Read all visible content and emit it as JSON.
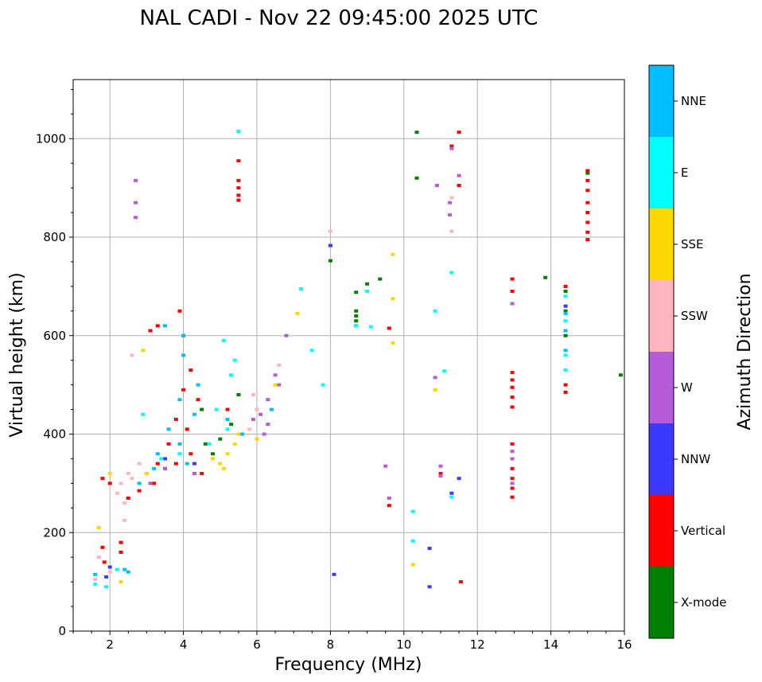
{
  "chart_data": {
    "type": "scatter",
    "title": "NAL CADI - Nov 22 09:45:00 2025 UTC",
    "xlabel": "Frequency (MHz)",
    "ylabel": "Virtual height (km)",
    "xlim": [
      1,
      16
    ],
    "ylim": [
      0,
      1120
    ],
    "xticks": [
      2,
      4,
      6,
      8,
      10,
      12,
      14,
      16
    ],
    "yticks": [
      0,
      200,
      400,
      600,
      800,
      1000
    ],
    "grid": true,
    "colorbar": {
      "label": "Azimuth Direction",
      "categories": [
        {
          "name": "X-mode",
          "color": "#008000"
        },
        {
          "name": "Vertical",
          "color": "#ff0000"
        },
        {
          "name": "NNW",
          "color": "#3a3aff"
        },
        {
          "name": "W",
          "color": "#b65bd9"
        },
        {
          "name": "SSW",
          "color": "#ffb6c1"
        },
        {
          "name": "SSE",
          "color": "#ffd700"
        },
        {
          "name": "E",
          "color": "#00ffff"
        },
        {
          "name": "NNE",
          "color": "#00bfff"
        }
      ]
    },
    "series": [
      {
        "name": "X-mode",
        "points": [
          [
            10.35,
            1013
          ],
          [
            10.35,
            920
          ],
          [
            8.7,
            688
          ],
          [
            8.7,
            650
          ],
          [
            8.7,
            640
          ],
          [
            8.7,
            630
          ],
          [
            8.7,
            620
          ],
          [
            9.0,
            705
          ],
          [
            9.35,
            715
          ],
          [
            8.0,
            752
          ],
          [
            13.85,
            718
          ],
          [
            14.4,
            690
          ],
          [
            14.4,
            650
          ],
          [
            14.4,
            600
          ],
          [
            15.9,
            520
          ],
          [
            15.0,
            930
          ],
          [
            4.5,
            450
          ],
          [
            4.6,
            380
          ],
          [
            5.0,
            390
          ],
          [
            5.3,
            420
          ],
          [
            5.6,
            400
          ],
          [
            3.5,
            330
          ],
          [
            4.8,
            360
          ],
          [
            5.5,
            480
          ]
        ]
      },
      {
        "name": "Vertical",
        "points": [
          [
            11.5,
            1013
          ],
          [
            11.3,
            985
          ],
          [
            15.0,
            935
          ],
          [
            15.0,
            915
          ],
          [
            15.0,
            895
          ],
          [
            15.0,
            870
          ],
          [
            15.0,
            850
          ],
          [
            15.0,
            830
          ],
          [
            15.0,
            810
          ],
          [
            15.0,
            795
          ],
          [
            11.5,
            905
          ],
          [
            5.5,
            955
          ],
          [
            5.5,
            915
          ],
          [
            5.5,
            900
          ],
          [
            5.5,
            885
          ],
          [
            5.5,
            875
          ],
          [
            12.95,
            715
          ],
          [
            12.95,
            690
          ],
          [
            12.95,
            525
          ],
          [
            12.95,
            510
          ],
          [
            12.95,
            495
          ],
          [
            12.95,
            475
          ],
          [
            12.95,
            455
          ],
          [
            12.95,
            380
          ],
          [
            12.95,
            330
          ],
          [
            12.95,
            310
          ],
          [
            12.95,
            290
          ],
          [
            12.95,
            272
          ],
          [
            14.4,
            700
          ],
          [
            14.4,
            500
          ],
          [
            14.4,
            485
          ],
          [
            9.6,
            615
          ],
          [
            9.6,
            255
          ],
          [
            11.0,
            320
          ],
          [
            11.55,
            100
          ],
          [
            3.9,
            650
          ],
          [
            4.0,
            600
          ],
          [
            4.2,
            530
          ],
          [
            4.0,
            490
          ],
          [
            4.4,
            470
          ],
          [
            3.8,
            430
          ],
          [
            4.1,
            410
          ],
          [
            3.6,
            380
          ],
          [
            3.3,
            340
          ],
          [
            3.0,
            320
          ],
          [
            3.2,
            300
          ],
          [
            2.8,
            285
          ],
          [
            2.5,
            270
          ],
          [
            3.8,
            340
          ],
          [
            4.2,
            360
          ],
          [
            4.5,
            320
          ],
          [
            2.0,
            300
          ],
          [
            1.8,
            310
          ],
          [
            1.8,
            170
          ],
          [
            1.85,
            140
          ],
          [
            2.3,
            180
          ],
          [
            2.3,
            160
          ],
          [
            3.1,
            610
          ],
          [
            3.3,
            620
          ],
          [
            5.2,
            450
          ]
        ]
      },
      {
        "name": "NNW",
        "points": [
          [
            8.1,
            115
          ],
          [
            10.7,
            168
          ],
          [
            10.7,
            90
          ],
          [
            11.3,
            280
          ],
          [
            11.5,
            310
          ],
          [
            8.0,
            783
          ],
          [
            14.4,
            660
          ],
          [
            2.0,
            130
          ],
          [
            3.5,
            350
          ],
          [
            4.3,
            340
          ],
          [
            1.9,
            110
          ]
        ]
      },
      {
        "name": "W",
        "points": [
          [
            2.7,
            915
          ],
          [
            2.7,
            870
          ],
          [
            2.7,
            840
          ],
          [
            11.3,
            980
          ],
          [
            11.5,
            925
          ],
          [
            10.9,
            905
          ],
          [
            11.25,
            870
          ],
          [
            11.25,
            845
          ],
          [
            12.95,
            665
          ],
          [
            12.95,
            365
          ],
          [
            12.95,
            350
          ],
          [
            12.95,
            300
          ],
          [
            9.5,
            335
          ],
          [
            9.6,
            270
          ],
          [
            11.0,
            335
          ],
          [
            11.0,
            315
          ],
          [
            10.85,
            515
          ],
          [
            6.8,
            600
          ],
          [
            6.5,
            520
          ],
          [
            6.3,
            470
          ],
          [
            6.1,
            440
          ],
          [
            6.3,
            420
          ],
          [
            6.6,
            500
          ],
          [
            6.2,
            400
          ],
          [
            5.9,
            430
          ],
          [
            3.5,
            330
          ],
          [
            4.3,
            320
          ],
          [
            3.1,
            300
          ]
        ]
      },
      {
        "name": "SSW",
        "points": [
          [
            8.0,
            812
          ],
          [
            11.3,
            812
          ],
          [
            11.3,
            880
          ],
          [
            2.6,
            560
          ],
          [
            2.4,
            225
          ],
          [
            2.3,
            300
          ],
          [
            2.5,
            320
          ],
          [
            2.6,
            310
          ],
          [
            2.2,
            280
          ],
          [
            2.4,
            260
          ],
          [
            2.8,
            340
          ],
          [
            1.6,
            105
          ],
          [
            1.7,
            150
          ],
          [
            2.0,
            120
          ],
          [
            5.9,
            480
          ],
          [
            6.0,
            450
          ],
          [
            6.6,
            540
          ],
          [
            5.8,
            410
          ]
        ]
      },
      {
        "name": "SSE",
        "points": [
          [
            9.7,
            765
          ],
          [
            9.7,
            675
          ],
          [
            9.7,
            585
          ],
          [
            7.1,
            645
          ],
          [
            10.85,
            490
          ],
          [
            10.25,
            135
          ],
          [
            2.9,
            570
          ],
          [
            1.7,
            210
          ],
          [
            2.3,
            100
          ],
          [
            5.0,
            340
          ],
          [
            5.2,
            360
          ],
          [
            5.4,
            380
          ],
          [
            5.5,
            400
          ],
          [
            4.8,
            350
          ],
          [
            5.1,
            330
          ],
          [
            6.5,
            500
          ],
          [
            6.0,
            390
          ],
          [
            3.0,
            320
          ],
          [
            2.0,
            320
          ]
        ]
      },
      {
        "name": "E",
        "points": [
          [
            5.5,
            1015
          ],
          [
            7.2,
            695
          ],
          [
            9.0,
            690
          ],
          [
            8.7,
            620
          ],
          [
            9.1,
            618
          ],
          [
            10.85,
            650
          ],
          [
            11.3,
            728
          ],
          [
            11.1,
            528
          ],
          [
            10.25,
            243
          ],
          [
            10.25,
            183
          ],
          [
            11.3,
            272
          ],
          [
            14.4,
            680
          ],
          [
            14.4,
            630
          ],
          [
            14.4,
            560
          ],
          [
            14.4,
            530
          ],
          [
            2.9,
            440
          ],
          [
            5.1,
            590
          ],
          [
            5.4,
            550
          ],
          [
            5.3,
            520
          ],
          [
            7.5,
            570
          ],
          [
            7.8,
            500
          ],
          [
            4.9,
            450
          ],
          [
            5.2,
            410
          ],
          [
            4.7,
            380
          ],
          [
            3.9,
            360
          ],
          [
            3.4,
            350
          ],
          [
            1.6,
            95
          ],
          [
            1.9,
            90
          ],
          [
            2.2,
            125
          ]
        ]
      },
      {
        "name": "NNE",
        "points": [
          [
            14.4,
            645
          ],
          [
            14.4,
            610
          ],
          [
            14.4,
            570
          ],
          [
            4.0,
            600
          ],
          [
            4.0,
            560
          ],
          [
            3.5,
            620
          ],
          [
            4.4,
            500
          ],
          [
            3.9,
            470
          ],
          [
            4.3,
            440
          ],
          [
            3.6,
            410
          ],
          [
            3.9,
            380
          ],
          [
            3.3,
            360
          ],
          [
            4.1,
            340
          ],
          [
            3.2,
            330
          ],
          [
            2.8,
            300
          ],
          [
            5.2,
            430
          ],
          [
            5.6,
            400
          ],
          [
            6.4,
            450
          ],
          [
            2.5,
            120
          ],
          [
            2.4,
            125
          ],
          [
            1.6,
            115
          ]
        ]
      }
    ]
  }
}
